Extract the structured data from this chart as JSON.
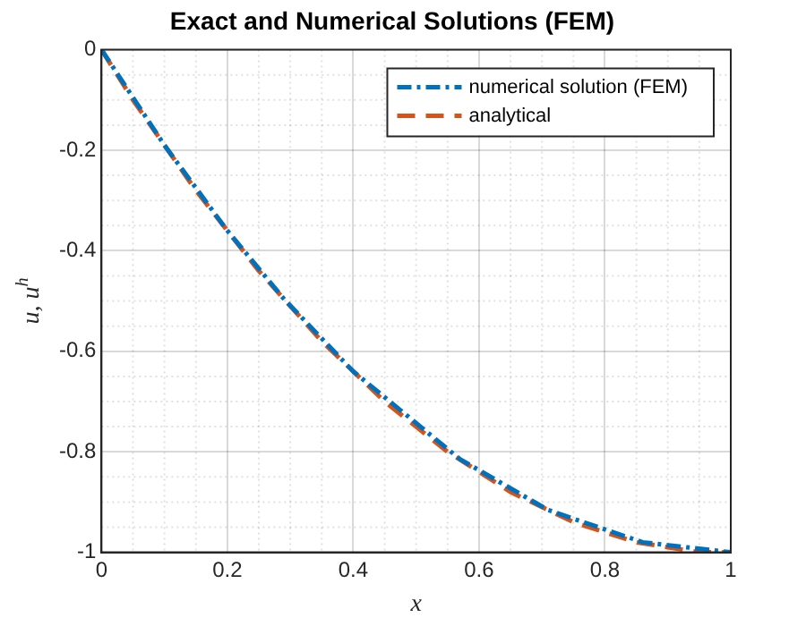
{
  "chart_data": {
    "type": "line",
    "title": "Exact and Numerical Solutions (FEM)",
    "xlabel": "x",
    "ylabel": "u, u$^{h}$",
    "xlim": [
      0,
      1
    ],
    "ylim": [
      -1,
      0
    ],
    "xticks": [
      0,
      0.2,
      0.4,
      0.6,
      0.8,
      1
    ],
    "yticks": [
      -1,
      -0.8,
      -0.6,
      -0.4,
      -0.2,
      0
    ],
    "grid": true,
    "legend": "top right",
    "marker": "none",
    "series": [
      {
        "name": "numerical solution (FEM)",
        "color": "#0072bd",
        "line_style": "dotted",
        "x": [
          0,
          0.1,
          0.2,
          0.29,
          0.4,
          0.57,
          0.71,
          0.86,
          1
        ],
        "values": [
          0,
          -0.19,
          -0.36,
          -0.496,
          -0.64,
          -0.815,
          -0.916,
          -0.98,
          -1
        ]
      },
      {
        "name": "analytical",
        "color": "#d95319",
        "line_style": "dashed",
        "x": [
          0,
          0.05,
          0.1,
          0.15,
          0.2,
          0.25,
          0.3,
          0.35,
          0.4,
          0.45,
          0.5,
          0.55,
          0.6,
          0.65,
          0.7,
          0.75,
          0.8,
          0.85,
          0.9,
          0.95,
          1
        ],
        "values": [
          0,
          -0.1,
          -0.19,
          -0.28,
          -0.36,
          -0.44,
          -0.51,
          -0.58,
          -0.64,
          -0.7,
          -0.75,
          -0.8,
          -0.84,
          -0.88,
          -0.91,
          -0.94,
          -0.96,
          -0.98,
          -0.99,
          -1,
          -1
        ]
      }
    ]
  }
}
